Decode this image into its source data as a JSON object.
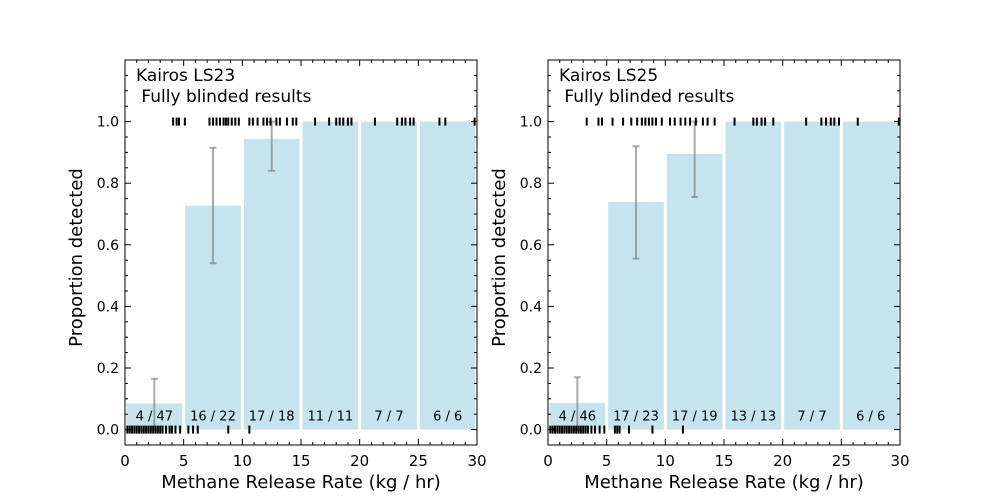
{
  "chart_data": [
    {
      "type": "bar",
      "title": "Kairos LS23\n Fully blinded results",
      "title_lines": [
        "Kairos LS23",
        " Fully blinded results"
      ],
      "xlabel": "Methane Release Rate (kg / hr)",
      "ylabel": "Proportion detected",
      "xlim": [
        0,
        30
      ],
      "ylim": [
        -0.05,
        1.2
      ],
      "x_ticks": [
        0,
        5,
        10,
        15,
        20,
        25,
        30
      ],
      "y_ticks": [
        0.0,
        0.2,
        0.4,
        0.6,
        0.8,
        1.0
      ],
      "bins": [
        {
          "x0": 0,
          "x1": 5,
          "value": 0.085,
          "label": "4 / 47",
          "err_low": 0.0,
          "err_high": 0.165
        },
        {
          "x0": 5,
          "x1": 10,
          "value": 0.727,
          "label": "16 / 22",
          "err_low": 0.54,
          "err_high": 0.915
        },
        {
          "x0": 10,
          "x1": 15,
          "value": 0.944,
          "label": "17 / 18",
          "err_low": 0.84,
          "err_high": 1.0
        },
        {
          "x0": 15,
          "x1": 20,
          "value": 1.0,
          "label": "11 / 11"
        },
        {
          "x0": 20,
          "x1": 25,
          "value": 1.0,
          "label": "7 / 7"
        },
        {
          "x0": 25,
          "x1": 30,
          "value": 1.0,
          "label": "6 / 6"
        }
      ],
      "detected_rates": [
        4.1,
        4.4,
        4.6,
        5.1,
        7.2,
        7.5,
        7.8,
        8.1,
        8.4,
        8.6,
        8.8,
        9.1,
        9.4,
        9.7,
        10.6,
        10.9,
        11.3,
        11.8,
        12.1,
        12.4,
        12.9,
        13.2,
        13.8,
        14.3,
        14.6,
        16.2,
        17.4,
        18.0,
        18.3,
        18.6,
        19.0,
        19.3,
        21.3,
        23.2,
        23.6,
        23.9,
        24.3,
        24.6,
        26.8,
        27.3,
        29.8
      ],
      "nondetected_rates": [
        0.2,
        0.4,
        0.6,
        0.8,
        1.0,
        1.2,
        1.4,
        1.6,
        1.8,
        2.0,
        2.2,
        2.4,
        2.6,
        2.8,
        3.0,
        3.2,
        3.5,
        3.8,
        4.0,
        4.3,
        4.7,
        5.4,
        5.8,
        6.2,
        8.8,
        10.6
      ]
    },
    {
      "type": "bar",
      "title": "Kairos LS25\n Fully blinded results",
      "title_lines": [
        "Kairos LS25",
        " Fully blinded results"
      ],
      "xlabel": "Methane Release Rate (kg / hr)",
      "ylabel": "Proportion detected",
      "xlim": [
        0,
        30
      ],
      "ylim": [
        -0.05,
        1.2
      ],
      "x_ticks": [
        0,
        5,
        10,
        15,
        20,
        25,
        30
      ],
      "y_ticks": [
        0.0,
        0.2,
        0.4,
        0.6,
        0.8,
        1.0
      ],
      "bins": [
        {
          "x0": 0,
          "x1": 5,
          "value": 0.087,
          "label": "4 / 46",
          "err_low": 0.0,
          "err_high": 0.17
        },
        {
          "x0": 5,
          "x1": 10,
          "value": 0.739,
          "label": "17 / 23",
          "err_low": 0.555,
          "err_high": 0.92
        },
        {
          "x0": 10,
          "x1": 15,
          "value": 0.895,
          "label": "17 / 19",
          "err_low": 0.755,
          "err_high": 1.0
        },
        {
          "x0": 15,
          "x1": 20,
          "value": 1.0,
          "label": "13 / 13"
        },
        {
          "x0": 20,
          "x1": 25,
          "value": 1.0,
          "label": "7 / 7"
        },
        {
          "x0": 25,
          "x1": 30,
          "value": 1.0,
          "label": "6 / 6"
        }
      ],
      "detected_rates": [
        3.3,
        4.3,
        4.6,
        5.5,
        6.4,
        7.1,
        7.6,
        8.0,
        8.3,
        8.6,
        8.9,
        9.2,
        9.7,
        10.4,
        10.8,
        11.3,
        11.7,
        12.1,
        12.6,
        13.2,
        13.6,
        14.2,
        15.9,
        17.5,
        17.8,
        18.2,
        18.5,
        19.2,
        22.0,
        23.3,
        23.7,
        24.1,
        24.4,
        24.8,
        26.4,
        29.9
      ],
      "nondetected_rates": [
        0.2,
        0.4,
        0.6,
        0.8,
        1.0,
        1.2,
        1.4,
        1.6,
        1.8,
        2.0,
        2.2,
        2.4,
        2.6,
        2.8,
        3.0,
        3.2,
        3.4,
        3.7,
        4.0,
        4.4,
        4.8,
        5.7,
        5.9,
        6.1,
        6.9,
        8.9,
        11.5
      ]
    }
  ]
}
